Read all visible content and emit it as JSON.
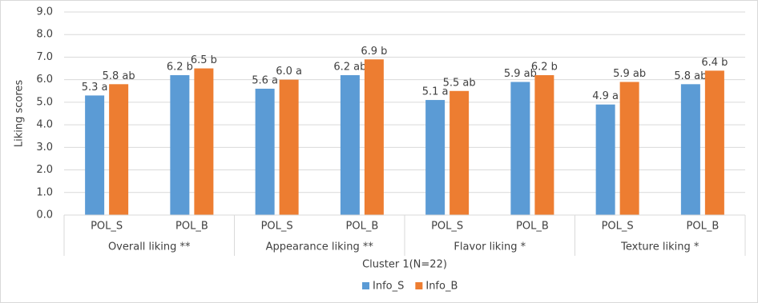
{
  "chart_data": {
    "type": "bar",
    "y_label": "Liking scores",
    "x_label": "Cluster 1(N=22)",
    "groups": [
      {
        "name": "Overall liking **",
        "categories": [
          "POL_S",
          "POL_B"
        ]
      },
      {
        "name": "Appearance liking **",
        "categories": [
          "POL_S",
          "POL_B"
        ]
      },
      {
        "name": "Flavor liking *",
        "categories": [
          "POL_S",
          "POL_B"
        ]
      },
      {
        "name": "Texture liking *",
        "categories": [
          "POL_S",
          "POL_B"
        ]
      }
    ],
    "series": [
      {
        "name": "Info_S",
        "color": "#5b9bd5",
        "values": [
          5.3,
          6.2,
          5.6,
          6.2,
          5.1,
          5.9,
          4.9,
          5.8
        ],
        "value_labels": [
          "5.3 a",
          "6.2 b",
          "5.6 a",
          "6.2 ab",
          "5.1 a",
          "5.9 ab",
          "4.9 a",
          "5.8 ab"
        ]
      },
      {
        "name": "Info_B",
        "color": "#ed7d31",
        "values": [
          5.8,
          6.5,
          6.0,
          6.9,
          5.5,
          6.2,
          5.9,
          6.4
        ],
        "value_labels": [
          "5.8 ab",
          "6.5 b",
          "6.0 a",
          "6.9 b",
          "5.5 ab",
          "6.2 b",
          "5.9 ab",
          "6.4 b"
        ]
      }
    ],
    "ylim": [
      0,
      9
    ],
    "yticks": [
      {
        "value": 0,
        "label": "0.0"
      },
      {
        "value": 1,
        "label": "1.0"
      },
      {
        "value": 2,
        "label": "2.0"
      },
      {
        "value": 3,
        "label": "3.0"
      },
      {
        "value": 4,
        "label": "4.0"
      },
      {
        "value": 5,
        "label": "5.0"
      },
      {
        "value": 6,
        "label": "6.0"
      },
      {
        "value": 7,
        "label": "7.0"
      },
      {
        "value": 8,
        "label": "8.0"
      },
      {
        "value": 9,
        "label": "9.0"
      }
    ],
    "grid": true,
    "legend": "bottom"
  }
}
